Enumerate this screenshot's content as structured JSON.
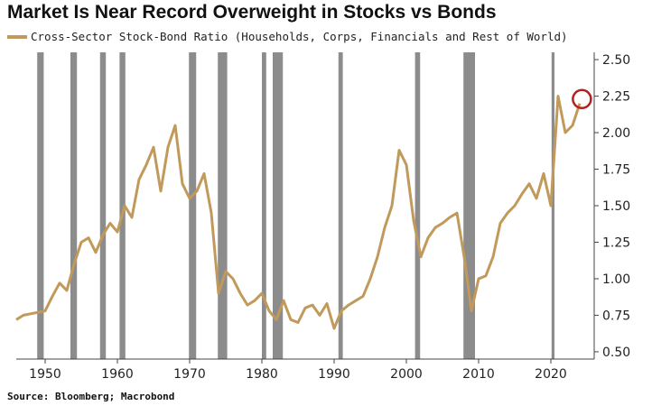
{
  "title": "Market Is Near Record Overweight in Stocks vs Bonds",
  "source": "Source: Bloomberg; Macrobond",
  "colors": {
    "series": "#C19A5B",
    "recession": "#8C8C8C",
    "marker": "#B22222",
    "axis": "#444444"
  },
  "chart_data": {
    "type": "line",
    "xlim": [
      1946,
      2026
    ],
    "ylim": [
      0.45,
      2.55
    ],
    "y_ticks": [
      0.5,
      0.75,
      1.0,
      1.25,
      1.5,
      1.75,
      2.0,
      2.25,
      2.5
    ],
    "y_tick_labels": [
      "0.50",
      "0.75",
      "1.00",
      "1.25",
      "1.50",
      "1.75",
      "2.00",
      "2.25",
      "2.50"
    ],
    "x_ticks": [
      1950,
      1960,
      1970,
      1980,
      1990,
      2000,
      2010,
      2020
    ],
    "x_tick_labels": [
      "1950",
      "1960",
      "1970",
      "1980",
      "1990",
      "2000",
      "2010",
      "2020"
    ],
    "grid": false,
    "legend": "top-left",
    "series": [
      {
        "name": "Cross-Sector Stock-Bond Ratio (Households, Corps, Financials and Rest of World)",
        "x": [
          1946,
          1947,
          1948,
          1949,
          1950,
          1951,
          1952,
          1953,
          1954,
          1955,
          1956,
          1957,
          1958,
          1959,
          1960,
          1961,
          1962,
          1963,
          1964,
          1965,
          1966,
          1967,
          1968,
          1969,
          1970,
          1971,
          1972,
          1973,
          1974,
          1975,
          1976,
          1977,
          1978,
          1979,
          1980,
          1981,
          1982,
          1983,
          1984,
          1985,
          1986,
          1987,
          1988,
          1989,
          1990,
          1991,
          1992,
          1993,
          1994,
          1995,
          1996,
          1997,
          1998,
          1999,
          2000,
          2001,
          2002,
          2003,
          2004,
          2005,
          2006,
          2007,
          2008,
          2009,
          2010,
          2011,
          2012,
          2013,
          2014,
          2015,
          2016,
          2017,
          2018,
          2019,
          2020,
          2021,
          2022,
          2023,
          2024
        ],
        "y": [
          0.72,
          0.75,
          0.76,
          0.77,
          0.78,
          0.88,
          0.97,
          0.92,
          1.1,
          1.25,
          1.28,
          1.18,
          1.3,
          1.38,
          1.32,
          1.5,
          1.42,
          1.68,
          1.78,
          1.9,
          1.6,
          1.9,
          2.05,
          1.65,
          1.55,
          1.6,
          1.72,
          1.45,
          0.9,
          1.05,
          1.0,
          0.9,
          0.82,
          0.85,
          0.9,
          0.78,
          0.72,
          0.85,
          0.72,
          0.7,
          0.8,
          0.82,
          0.75,
          0.83,
          0.66,
          0.78,
          0.82,
          0.85,
          0.88,
          1.0,
          1.15,
          1.35,
          1.5,
          1.88,
          1.78,
          1.4,
          1.15,
          1.28,
          1.35,
          1.38,
          1.42,
          1.45,
          1.15,
          0.78,
          1.0,
          1.02,
          1.15,
          1.38,
          1.45,
          1.5,
          1.58,
          1.65,
          1.55,
          1.72,
          1.5,
          2.25,
          2.0,
          2.05,
          2.2
        ]
      }
    ],
    "recessions": [
      [
        1948.9,
        1949.8
      ],
      [
        1953.5,
        1954.4
      ],
      [
        1957.6,
        1958.4
      ],
      [
        1960.3,
        1961.1
      ],
      [
        1969.9,
        1970.9
      ],
      [
        1973.9,
        1975.2
      ],
      [
        1980.0,
        1980.6
      ],
      [
        1981.5,
        1982.9
      ],
      [
        1990.6,
        1991.2
      ],
      [
        2001.2,
        2001.9
      ],
      [
        2007.9,
        2009.5
      ],
      [
        2020.1,
        2020.5
      ]
    ],
    "highlight": {
      "x": 2024.3,
      "y": 2.23
    }
  }
}
